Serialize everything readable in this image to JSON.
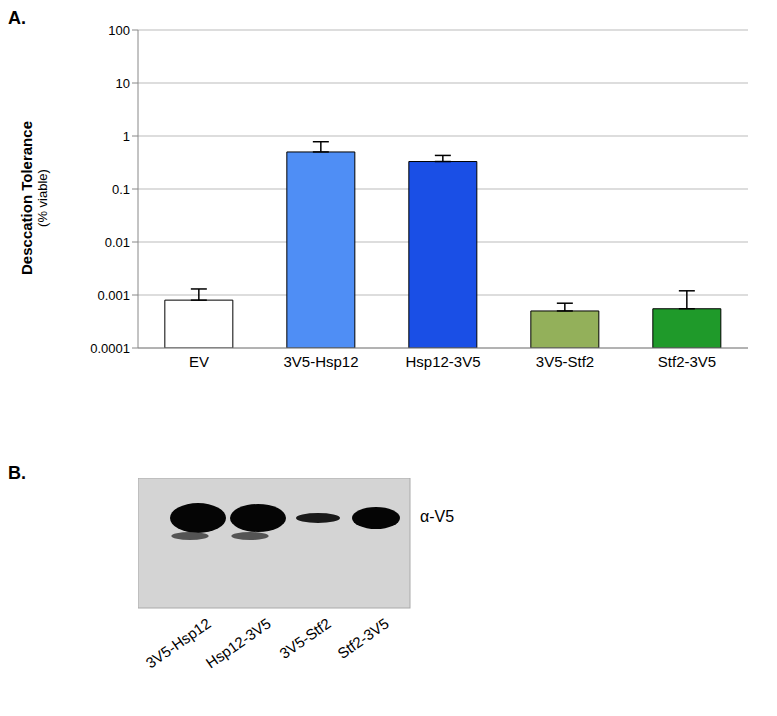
{
  "chart_data": {
    "type": "bar",
    "title": "A.",
    "y_label": [
      "Desccation Tolerance",
      "(% viable)"
    ],
    "categories": [
      "EV",
      "3V5-Hsp12",
      "Hsp12-3V5",
      "3V5-Stf2",
      "Stf2-3V5"
    ],
    "values": [
      0.0008,
      0.5,
      0.33,
      0.0005,
      0.00055
    ],
    "errors": [
      0.0005,
      0.28,
      0.1,
      0.0002,
      0.00065
    ],
    "colors": [
      "#ffffff",
      "#4f8ef5",
      "#1a4fe6",
      "#93b05a",
      "#1f9a2a"
    ],
    "ylim": [
      0.0001,
      100
    ],
    "yticks": [
      0.0001,
      0.001,
      0.01,
      0.1,
      1,
      10,
      100
    ],
    "log": "y",
    "grid": true
  },
  "blot": {
    "title": "B.",
    "antibody": "α-V5",
    "lanes": [
      "3V5-Hsp12",
      "Hsp12-3V5",
      "3V5-Stf2",
      "Stf2-3V5"
    ]
  }
}
